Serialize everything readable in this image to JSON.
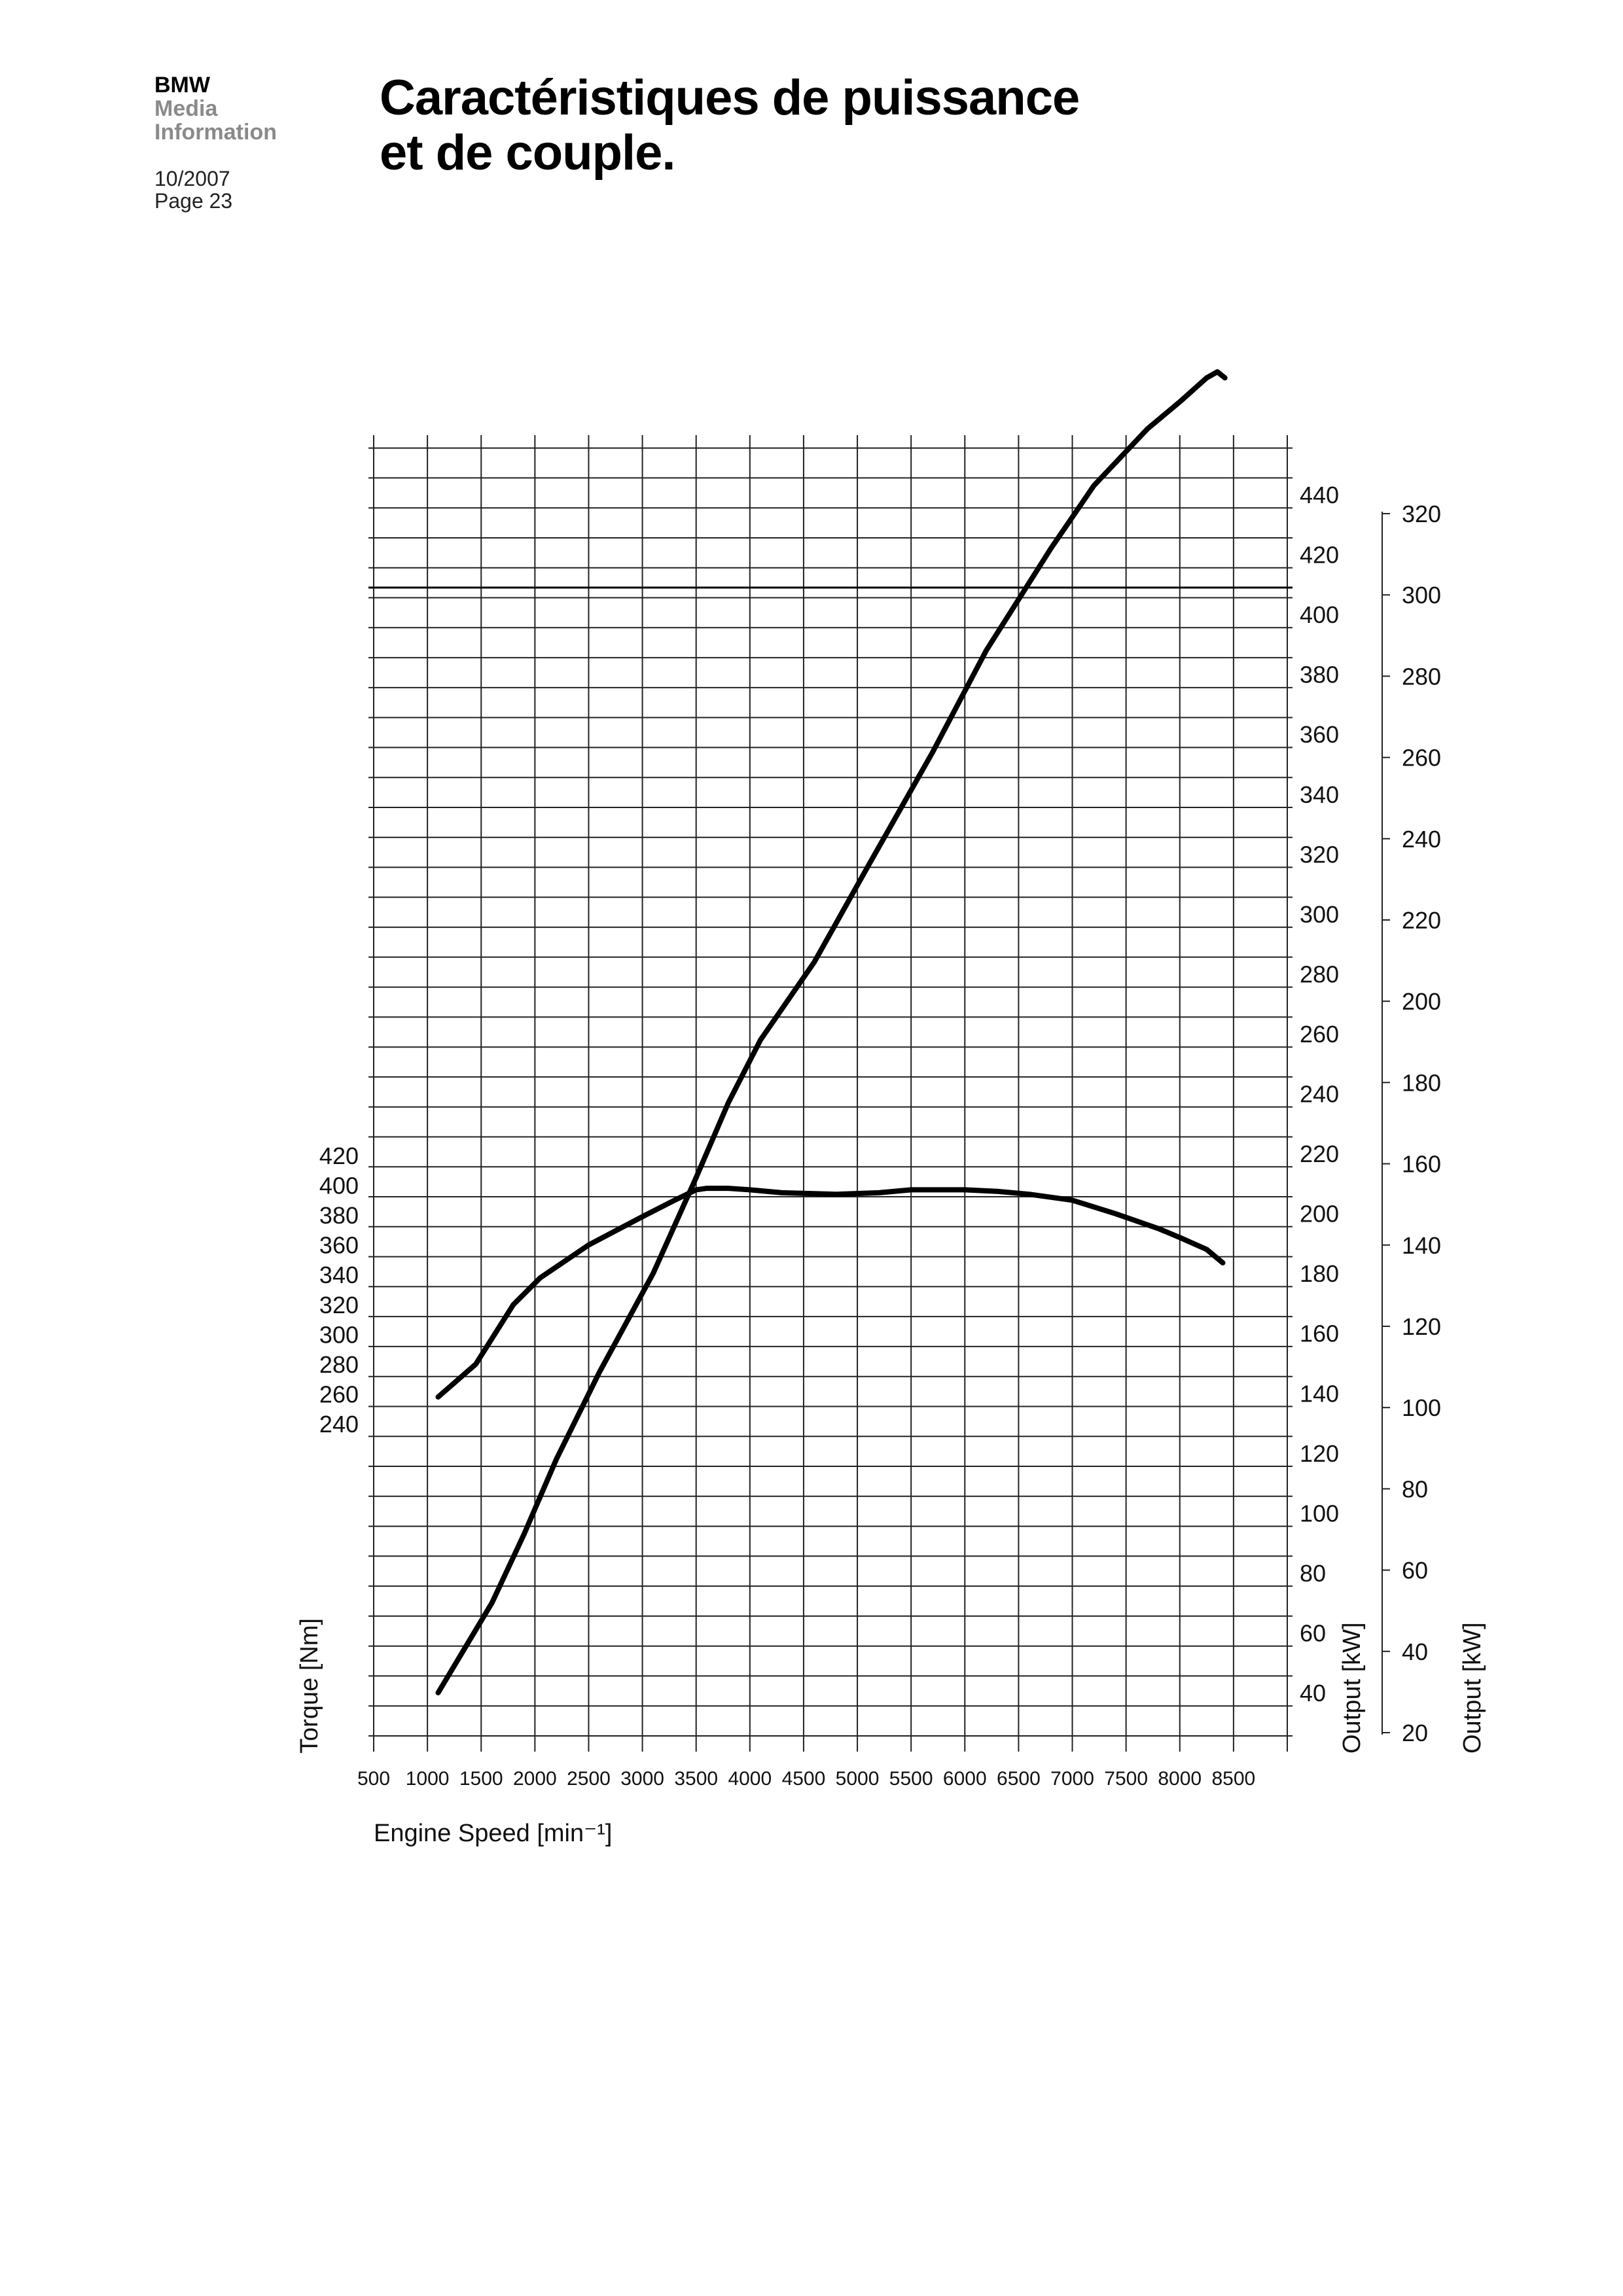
{
  "header": {
    "brand": "BMW",
    "line2": "Media",
    "line3": "Information",
    "date": "10/2007",
    "page": "Page 23"
  },
  "title_lines": [
    "Caractéristiques de puissance",
    "et de couple."
  ],
  "chart_data": {
    "type": "line",
    "xlabel": "Engine Speed [min⁻¹]",
    "x_ticks": [
      500,
      1000,
      1500,
      2000,
      2500,
      3000,
      3500,
      4000,
      4500,
      5000,
      5500,
      6000,
      6500,
      7000,
      7500,
      8000,
      8500
    ],
    "xlim": [
      500,
      9000
    ],
    "y_torque": {
      "label": "Torque [Nm]",
      "ticks": [
        240,
        260,
        280,
        300,
        320,
        340,
        360,
        380,
        400,
        420
      ]
    },
    "y_output_hp": {
      "label": "Output [kW]",
      "ticks": [
        40,
        60,
        80,
        100,
        120,
        140,
        160,
        180,
        200,
        220,
        240,
        260,
        280,
        300,
        320,
        340,
        360,
        380,
        400,
        420,
        440
      ]
    },
    "y_output_kw": {
      "label": "Output [kW]",
      "ticks": [
        20,
        40,
        60,
        80,
        100,
        120,
        140,
        160,
        180,
        200,
        220,
        240,
        260,
        280,
        300,
        320
      ]
    },
    "series": [
      {
        "axis": "torque",
        "x": [
          1100,
          1450,
          1800,
          2050,
          2500,
          3000,
          3300,
          3500,
          3600,
          3800,
          4000,
          4300,
          4800,
          5200,
          5500,
          6000,
          6300,
          6600,
          7000,
          7400,
          7800,
          8000,
          8250,
          8400
        ],
        "y": [
          258,
          280,
          320,
          338,
          360,
          379,
          390,
          397,
          398,
          398,
          397,
          395,
          394,
          395,
          397,
          397,
          396,
          394,
          390,
          381,
          371,
          365,
          357,
          348
        ]
      },
      {
        "axis": "output_hp",
        "x": [
          1100,
          1300,
          1600,
          1900,
          2200,
          2600,
          3100,
          3500,
          3800,
          4100,
          4600,
          5100,
          5700,
          6200,
          6800,
          7200,
          7700,
          8000,
          8250,
          8350,
          8420
        ],
        "y": [
          40,
          52,
          70,
          93,
          118,
          147,
          180,
          212,
          237,
          258,
          284,
          316,
          354,
          388,
          422,
          443,
          462,
          471,
          479,
          481,
          479
        ]
      }
    ]
  }
}
